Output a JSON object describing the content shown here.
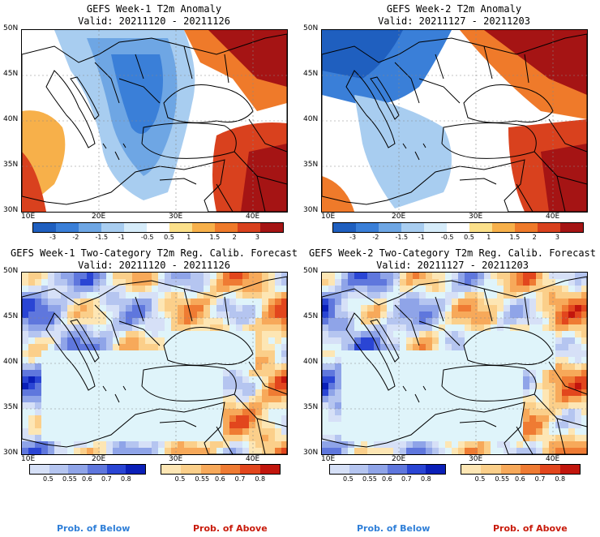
{
  "panels": [
    {
      "id": "p1",
      "title": "GEFS Week-1 T2m Anomaly",
      "valid": "Valid: 20211120 - 20211126",
      "type": "anomaly"
    },
    {
      "id": "p2",
      "title": "GEFS Week-2 T2m Anomaly",
      "valid": "Valid: 20211127 - 20211203",
      "type": "anomaly"
    },
    {
      "id": "p3",
      "title": "GEFS Week-1 Two-Category T2m Reg. Calib. Forecast",
      "valid": "Valid: 20211120 - 20211126",
      "type": "prob"
    },
    {
      "id": "p4",
      "title": "GEFS Week-2 Two-Category T2m Reg. Calib. Forecast",
      "valid": "Valid: 20211127 - 20211203",
      "type": "prob"
    }
  ],
  "lat_labels": [
    "50N",
    "45N",
    "40N",
    "35N",
    "30N"
  ],
  "lon_labels": [
    "10E",
    "20E",
    "30E",
    "40E"
  ],
  "anomaly_colorbar": {
    "labels": [
      "-3",
      "-2",
      "-1.5",
      "-1",
      "-0.5",
      "0.5",
      "1",
      "1.5",
      "2",
      "3"
    ],
    "colors": [
      "#1f5fbf",
      "#3a7fd8",
      "#6ea6e4",
      "#a8cdf0",
      "#d6ecfa",
      "#ffffff",
      "#fbe08a",
      "#f7b04a",
      "#ef7a2a",
      "#d9411e",
      "#a51414"
    ]
  },
  "prob_colorbar": {
    "below_labels": [
      "0.5",
      "0.55",
      "0.6",
      "0.7",
      "0.8"
    ],
    "below_colors": [
      "#d6e0f7",
      "#b5c5f0",
      "#8fa4e8",
      "#5f77dd",
      "#2a45d4",
      "#0a1fb8"
    ],
    "above_labels": [
      "0.5",
      "0.55",
      "0.6",
      "0.7",
      "0.8"
    ],
    "above_colors": [
      "#fde6b4",
      "#fbcf8a",
      "#f7a95a",
      "#ef7b33",
      "#e2461d",
      "#c2160d"
    ]
  },
  "legend": {
    "below": "Prob. of Below",
    "above": "Prob. of Above",
    "below_color": "#2f7fd8",
    "above_color": "#c81a0a"
  }
}
